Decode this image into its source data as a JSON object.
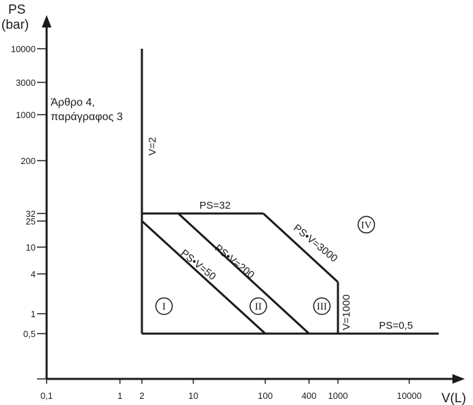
{
  "chart_data": {
    "type": "line",
    "xlabel": "V(L)",
    "ylabel_line1": "PS",
    "ylabel_line2": "(bar)",
    "x_scale": "log",
    "y_scale": "log",
    "x_ticks": [
      {
        "value": 0.1,
        "label": "0,1"
      },
      {
        "value": 1,
        "label": "1"
      },
      {
        "value": 2,
        "label": "2"
      },
      {
        "value": 10,
        "label": "10"
      },
      {
        "value": 100,
        "label": "100"
      },
      {
        "value": 400,
        "label": "400"
      },
      {
        "value": 1000,
        "label": "1000"
      },
      {
        "value": 10000,
        "label": "10000"
      }
    ],
    "y_ticks": [
      {
        "value": 0.5,
        "label": "0,5"
      },
      {
        "value": 1,
        "label": "1"
      },
      {
        "value": 4,
        "label": "4"
      },
      {
        "value": 10,
        "label": "10"
      },
      {
        "value": 25,
        "label": "25"
      },
      {
        "value": 32,
        "label": "32"
      },
      {
        "value": 200,
        "label": "200"
      },
      {
        "value": 1000,
        "label": "1000"
      },
      {
        "value": 3000,
        "label": "3000"
      },
      {
        "value": 10000,
        "label": "10000"
      }
    ],
    "series": [
      {
        "name": "V=2",
        "points": [
          [
            2,
            0.5
          ],
          [
            2,
            10000
          ]
        ]
      },
      {
        "name": "PS=32",
        "points": [
          [
            2,
            32
          ],
          [
            93.75,
            32
          ]
        ]
      },
      {
        "name": "PS•V=50",
        "points": [
          [
            2,
            25
          ],
          [
            100,
            0.5
          ]
        ]
      },
      {
        "name": "PS•V=200",
        "points": [
          [
            6.25,
            32
          ],
          [
            400,
            0.5
          ]
        ]
      },
      {
        "name": "PS•V=3000",
        "points": [
          [
            93.75,
            32
          ],
          [
            1000,
            3
          ]
        ]
      },
      {
        "name": "V=1000",
        "points": [
          [
            1000,
            3
          ],
          [
            1000,
            0.5
          ]
        ]
      },
      {
        "name": "PS=0,5",
        "points": [
          [
            2,
            0.5
          ],
          [
            20000,
            0.5
          ]
        ]
      }
    ],
    "regions": [
      {
        "label": "I",
        "x": 4,
        "y": 1.3
      },
      {
        "label": "II",
        "x": 80,
        "y": 1.3
      },
      {
        "label": "III",
        "x": 600,
        "y": 1.3
      },
      {
        "label": "IV",
        "x": 2500,
        "y": 22
      }
    ],
    "annotation": {
      "line1": "Άρθρο 4,",
      "line2": "παράγραφος 3"
    }
  }
}
